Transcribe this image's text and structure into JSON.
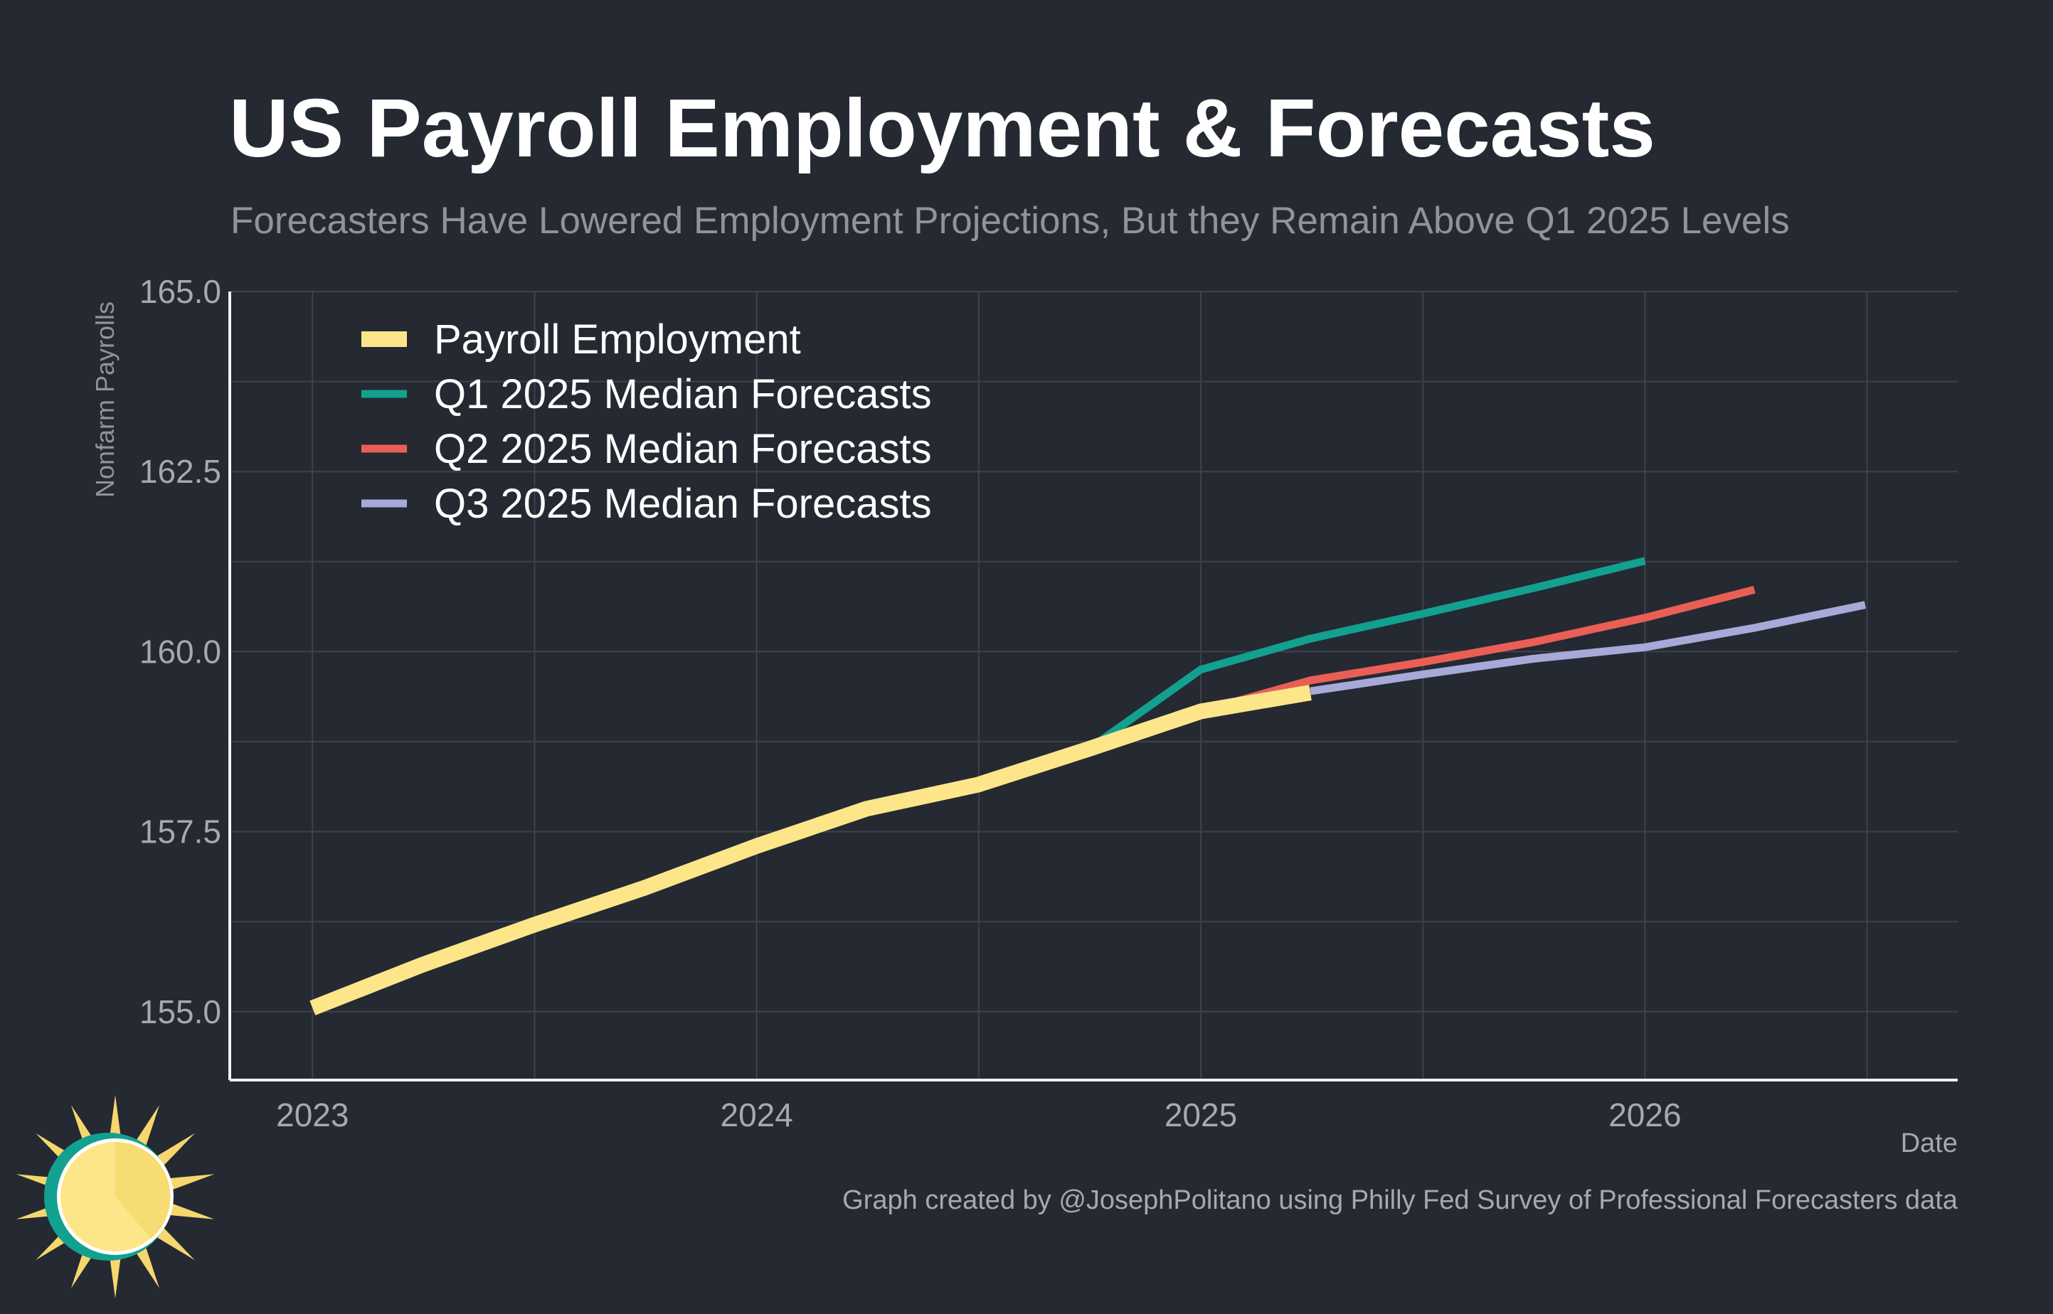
{
  "colors": {
    "background": "#252932",
    "grid": "#3d424c",
    "axis": "#f2f2f2",
    "title": "#ffffff",
    "subtitle": "#8f939c",
    "tick": "#a6a9b0",
    "legend_text": "#ffffff",
    "caption": "#a6a9b0",
    "logo_outer": "#12a08f",
    "logo_rays": "#f5d76e",
    "logo_face": "#fde68a",
    "logo_face_dark": "#f6dc72",
    "logo_ring": "#ffffff"
  },
  "chart_data": {
    "type": "line",
    "title": "US Payroll Employment & Forecasts",
    "subtitle": "Forecasters Have Lowered Employment Projections, But they Remain Above Q1 2025 Levels",
    "xlabel": "Date",
    "ylabel": "Nonfarm Payrolls",
    "caption": "Graph created by @JosephPolitano using Philly Fed Survey of Professional Forecasters data",
    "x_ticks": [
      "2023",
      "2024",
      "2025",
      "2026"
    ],
    "y_ticks": [
      "155.0",
      "157.5",
      "160.0",
      "162.5",
      "165.0"
    ],
    "xlim": [
      "2022-10-25",
      "2026-09-15"
    ],
    "ylim": [
      154.05,
      165.0
    ],
    "grid": true,
    "legend_position": "top-left",
    "series": [
      {
        "name": "Payroll Employment",
        "color": "#fde68a",
        "points": [
          [
            "2023-01-01",
            155.05
          ],
          [
            "2023-04-01",
            155.65
          ],
          [
            "2023-07-01",
            156.2
          ],
          [
            "2023-10-01",
            156.72
          ],
          [
            "2024-01-01",
            157.3
          ],
          [
            "2024-04-01",
            157.82
          ],
          [
            "2024-07-01",
            158.15
          ],
          [
            "2024-10-01",
            158.65
          ],
          [
            "2025-01-01",
            159.17
          ],
          [
            "2025-04-01",
            159.43
          ]
        ]
      },
      {
        "name": "Q1 2025 Median Forecasts",
        "color": "#12a08f",
        "points": [
          [
            "2024-10-01",
            158.65
          ],
          [
            "2025-01-01",
            159.75
          ],
          [
            "2025-04-01",
            160.18
          ],
          [
            "2025-07-01",
            160.52
          ],
          [
            "2025-10-01",
            160.88
          ],
          [
            "2026-01-01",
            161.26
          ]
        ]
      },
      {
        "name": "Q2 2025 Median Forecasts",
        "color": "#ea5f55",
        "points": [
          [
            "2025-01-01",
            159.17
          ],
          [
            "2025-04-01",
            159.6
          ],
          [
            "2025-07-01",
            159.85
          ],
          [
            "2025-10-01",
            160.13
          ],
          [
            "2026-01-01",
            160.47
          ],
          [
            "2026-04-01",
            160.86
          ]
        ]
      },
      {
        "name": "Q3 2025 Median Forecasts",
        "color": "#a7a9d8",
        "points": [
          [
            "2025-04-01",
            159.45
          ],
          [
            "2025-07-01",
            159.68
          ],
          [
            "2025-10-01",
            159.9
          ],
          [
            "2026-01-01",
            160.06
          ],
          [
            "2026-04-01",
            160.33
          ],
          [
            "2026-07-01",
            160.65
          ]
        ]
      }
    ]
  }
}
